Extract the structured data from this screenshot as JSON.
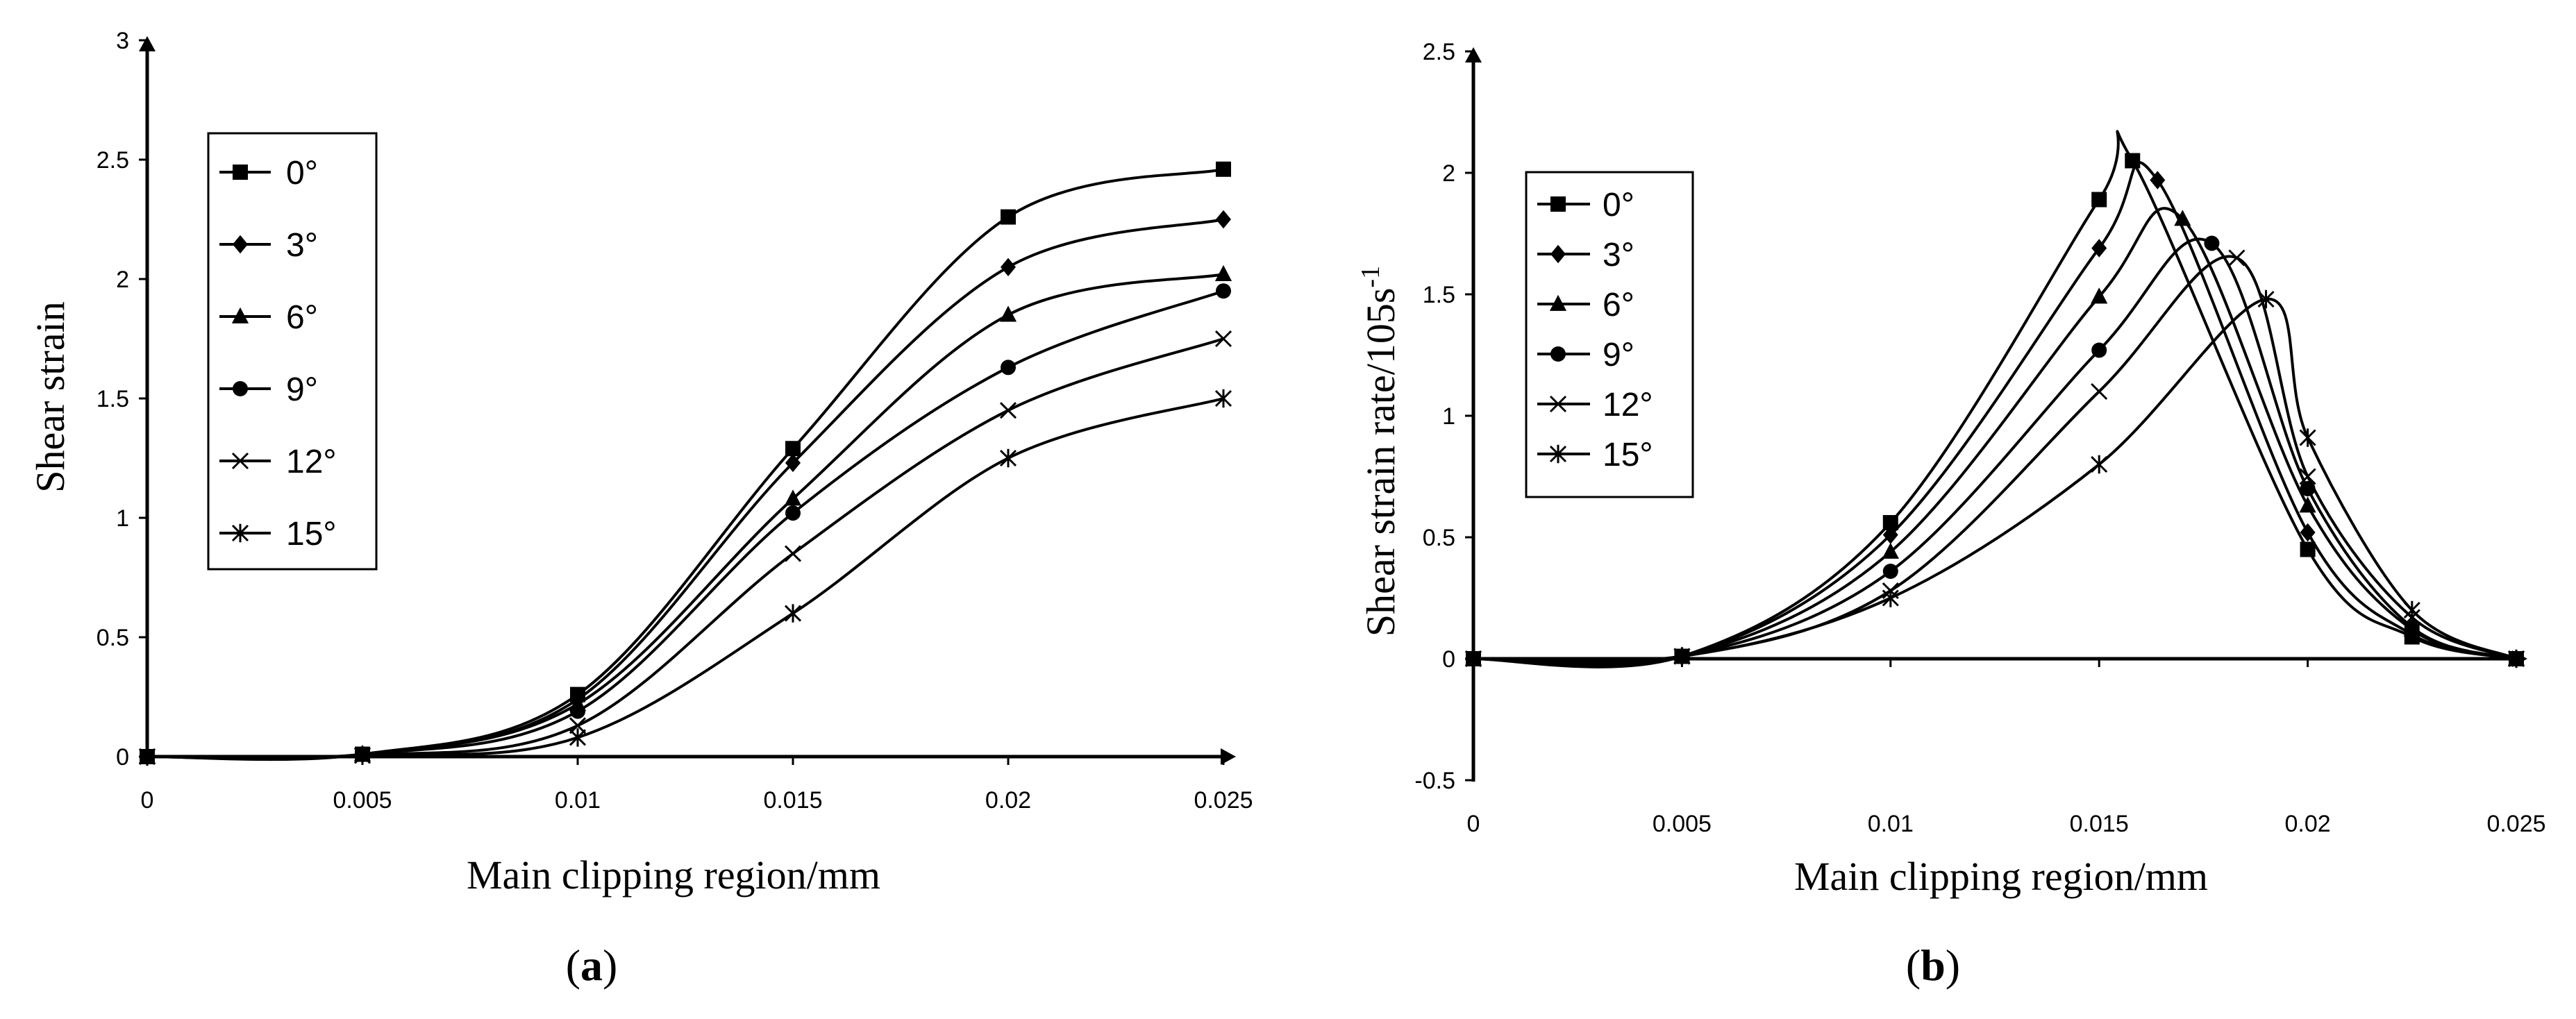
{
  "chart_data": [
    {
      "type": "line",
      "panel_label": "a",
      "title": "",
      "xlabel": "Main clipping region/mm",
      "ylabel": "Shear strain",
      "xlim": [
        0,
        0.025
      ],
      "ylim": [
        0,
        3
      ],
      "grid": false,
      "legend_position": "top-left",
      "xticks": [
        0,
        0.005,
        0.01,
        0.015,
        0.02,
        0.025
      ],
      "xtick_labels": [
        "0",
        "0.005",
        "0.01",
        "0.015",
        "0.02",
        "0.025"
      ],
      "yticks": [
        0,
        0.5,
        1,
        1.5,
        2,
        2.5,
        3
      ],
      "ytick_labels": [
        "0",
        "0.5",
        "1",
        "1.5",
        "2",
        "2.5",
        "3"
      ],
      "x": [
        0,
        0.005,
        0.01,
        0.015,
        0.02,
        0.025
      ],
      "series": [
        {
          "name": "0°",
          "marker": "square",
          "values": [
            0,
            0.01,
            0.26,
            1.29,
            2.26,
            2.46
          ]
        },
        {
          "name": "3°",
          "marker": "diamond",
          "values": [
            0,
            0.01,
            0.24,
            1.23,
            2.05,
            2.25
          ]
        },
        {
          "name": "6°",
          "marker": "triangle",
          "values": [
            0,
            0.01,
            0.22,
            1.08,
            1.85,
            2.02
          ]
        },
        {
          "name": "9°",
          "marker": "circle",
          "values": [
            0,
            0.01,
            0.19,
            1.02,
            1.63,
            1.95
          ]
        },
        {
          "name": "12°",
          "marker": "x",
          "values": [
            0,
            0.005,
            0.13,
            0.85,
            1.45,
            1.75
          ]
        },
        {
          "name": "15°",
          "marker": "star",
          "values": [
            0,
            0.005,
            0.08,
            0.6,
            1.25,
            1.5
          ]
        }
      ]
    },
    {
      "type": "line",
      "panel_label": "b",
      "title": "",
      "xlabel": "Main clipping region/mm",
      "ylabel": "Shear strain rate/105s",
      "ylabel_superscript": "-1",
      "xlim": [
        0,
        0.025
      ],
      "ylim": [
        -0.5,
        2.5
      ],
      "grid": false,
      "legend_position": "top-left",
      "xticks": [
        0,
        0.005,
        0.01,
        0.015,
        0.02,
        0.025
      ],
      "xtick_labels": [
        "0",
        "0.005",
        "0.01",
        "0.015",
        "0.02",
        "0.025"
      ],
      "yticks": [
        -0.5,
        0,
        0.5,
        1,
        1.5,
        2,
        2.5
      ],
      "ytick_labels": [
        "-0.5",
        "0",
        "0.5",
        "1",
        "1.5",
        "2",
        "2.5"
      ],
      "series": [
        {
          "name": "0°",
          "marker": "square",
          "x": [
            0,
            0.005,
            0.01,
            0.015,
            0.0158,
            0.02,
            0.0225,
            0.025
          ],
          "y": [
            0,
            0.01,
            0.56,
            1.89,
            2.05,
            0.45,
            0.09,
            0
          ]
        },
        {
          "name": "3°",
          "marker": "diamond",
          "x": [
            0,
            0.005,
            0.01,
            0.015,
            0.0164,
            0.02,
            0.0225,
            0.025
          ],
          "y": [
            0,
            0.01,
            0.51,
            1.69,
            1.97,
            0.52,
            0.1,
            0
          ]
        },
        {
          "name": "6°",
          "marker": "triangle",
          "x": [
            0,
            0.005,
            0.01,
            0.015,
            0.017,
            0.02,
            0.0225,
            0.025
          ],
          "y": [
            0,
            0.01,
            0.44,
            1.49,
            1.81,
            0.63,
            0.12,
            0
          ]
        },
        {
          "name": "9°",
          "marker": "circle",
          "x": [
            0,
            0.005,
            0.01,
            0.015,
            0.0177,
            0.02,
            0.0225,
            0.025
          ],
          "y": [
            0,
            0.01,
            0.36,
            1.27,
            1.71,
            0.7,
            0.13,
            0
          ]
        },
        {
          "name": "12°",
          "marker": "x",
          "x": [
            0,
            0.005,
            0.01,
            0.015,
            0.0183,
            0.02,
            0.0225,
            0.025
          ],
          "y": [
            0,
            0.01,
            0.28,
            1.1,
            1.65,
            0.75,
            0.17,
            0
          ]
        },
        {
          "name": "15°",
          "marker": "star",
          "x": [
            0,
            0.005,
            0.01,
            0.015,
            0.019,
            0.02,
            0.0225,
            0.025
          ],
          "y": [
            0,
            0.01,
            0.25,
            0.8,
            1.48,
            0.91,
            0.2,
            0
          ]
        }
      ]
    }
  ]
}
